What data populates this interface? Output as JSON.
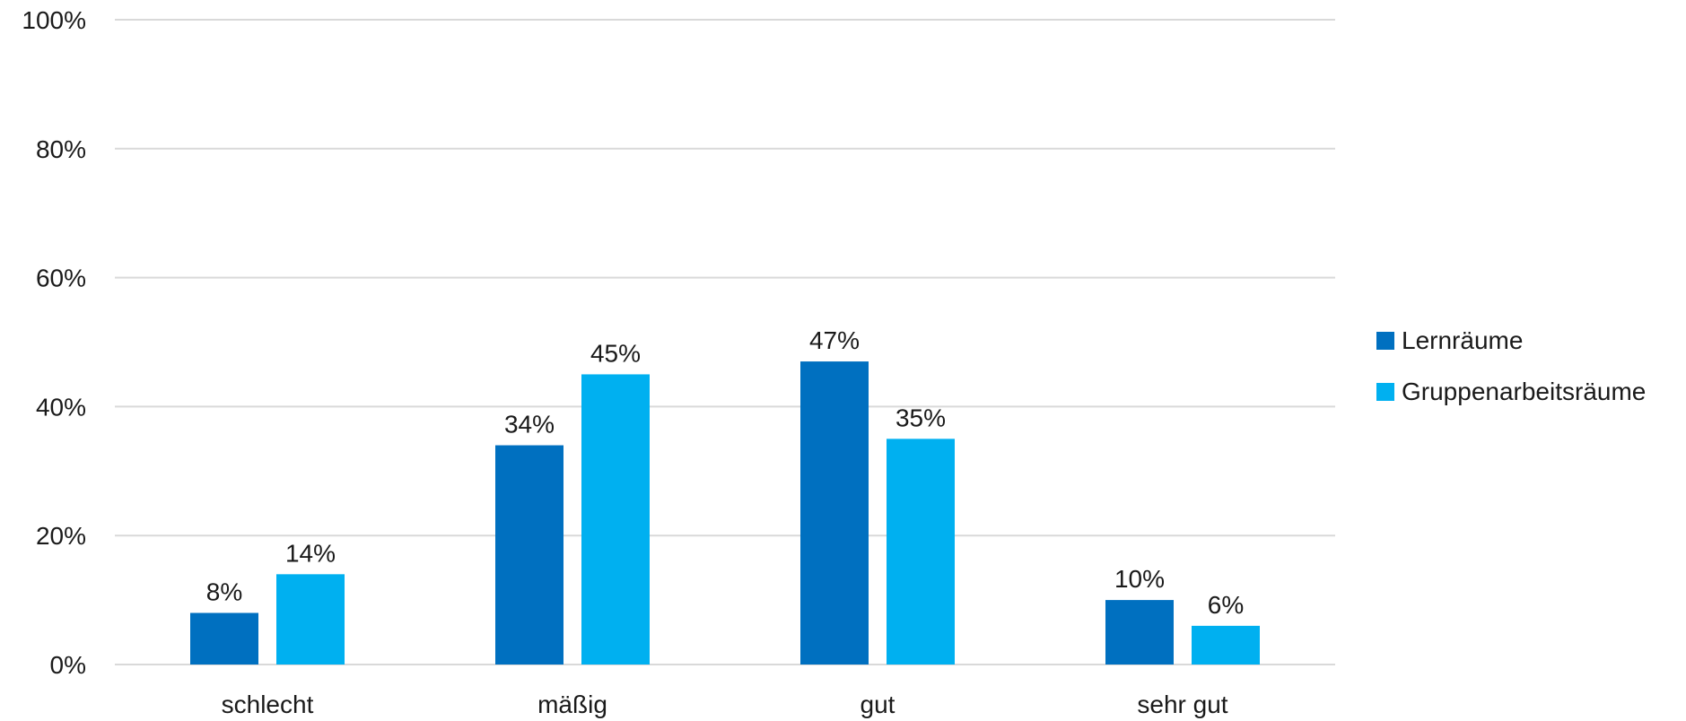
{
  "chart_data": {
    "type": "bar",
    "categories": [
      "schlecht",
      "mäßig",
      "gut",
      "sehr gut"
    ],
    "series": [
      {
        "name": "Lernräume",
        "values": [
          8,
          34,
          47,
          10
        ],
        "labels": [
          "8%",
          "34%",
          "47%",
          "10%"
        ],
        "color": "#0070c0"
      },
      {
        "name": "Gruppenarbeitsräume",
        "values": [
          14,
          45,
          35,
          6
        ],
        "labels": [
          "14%",
          "45%",
          "35%",
          "6%"
        ],
        "color": "#00b0f0"
      }
    ],
    "ylim": [
      0,
      100
    ],
    "yticks": [
      0,
      20,
      40,
      60,
      80,
      100
    ],
    "ytick_labels": [
      "0%",
      "20%",
      "40%",
      "60%",
      "80%",
      "100%"
    ],
    "grid": true,
    "grid_color": "#d9d9d9",
    "legend_position": "right"
  }
}
